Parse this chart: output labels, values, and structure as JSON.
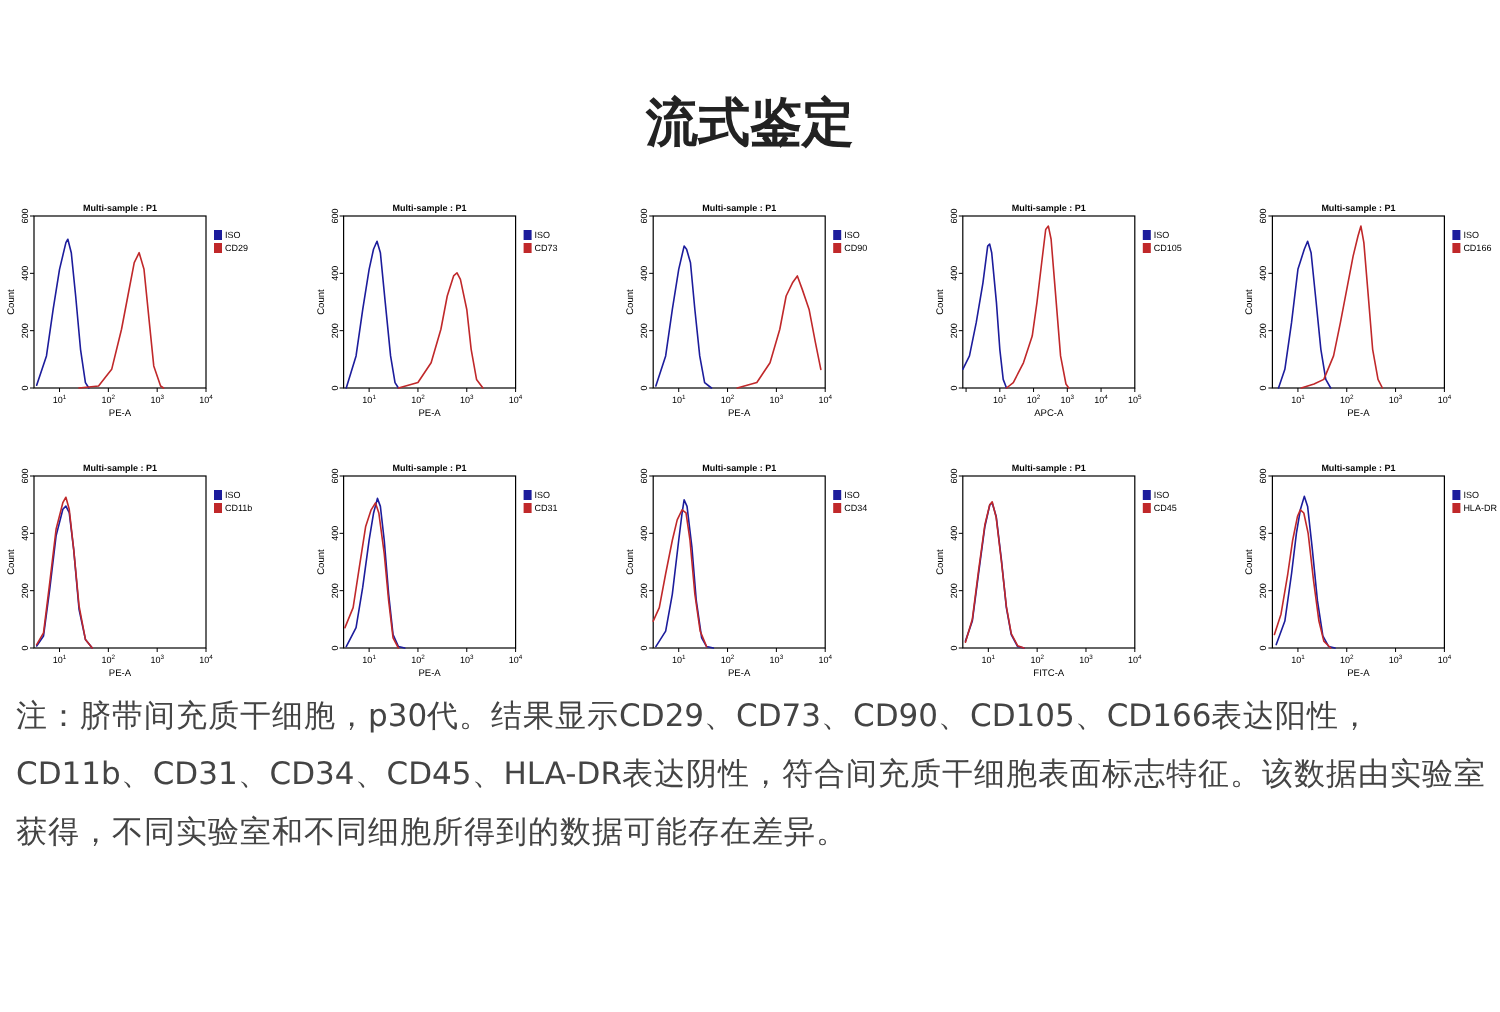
{
  "chart_data": [
    {
      "type": "other",
      "title": "流式鉴定"
    },
    {
      "type": "line",
      "title": "Multi-sample : P1",
      "xlabel": "PE-A",
      "ylabel": "Count",
      "log": "x",
      "xlim": [
        3,
        10000
      ],
      "ylim": [
        0,
        600
      ],
      "xticks": [
        {
          "value": 10,
          "label": "10$^{1}$"
        },
        {
          "value": 100,
          "label": "10$^{2}$"
        },
        {
          "value": 1000,
          "label": "10$^{3}$"
        },
        {
          "value": 10000,
          "label": "10$^{4}$"
        }
      ],
      "yticks": [
        0,
        200,
        400,
        600
      ],
      "legend": "top right",
      "series": [
        {
          "name": "ISO",
          "color": "#1c1c9c",
          "x": [
            3.4,
            5.4,
            7.4,
            10,
            13.5,
            14.8,
            17.4,
            21.4,
            26.9,
            33.9,
            39.8
          ],
          "values": [
            10,
            112,
            274,
            414,
            507,
            519,
            472,
            321,
            135,
            19,
            0
          ]
        },
        {
          "name": "CD29",
          "color": "#c0282a",
          "x": [
            25,
            63,
            117,
            186,
            251,
            339,
            427,
            537,
            692,
            851,
            1175,
            1350
          ],
          "values": [
            0,
            7,
            65,
            205,
            321,
            437,
            472,
            414,
            228,
            77,
            7,
            0
          ]
        }
      ]
    },
    {
      "type": "line",
      "title": "Multi-sample : P1",
      "xlabel": "PE-A",
      "ylabel": "Count",
      "log": "x",
      "xlim": [
        3,
        10000
      ],
      "ylim": [
        0,
        600
      ],
      "xticks": [
        {
          "value": 10,
          "label": "10$^{1}$"
        },
        {
          "value": 100,
          "label": "10$^{2}$"
        },
        {
          "value": 1000,
          "label": "10$^{3}$"
        },
        {
          "value": 10000,
          "label": "10$^{4}$"
        }
      ],
      "yticks": [
        0,
        200,
        400,
        600
      ],
      "legend": "top right",
      "series": [
        {
          "name": "ISO",
          "color": "#1c1c9c",
          "x": [
            3.4,
            5.4,
            7.4,
            10,
            12.3,
            14.5,
            17,
            21.4,
            27.5,
            33.9,
            39.8
          ],
          "values": [
            0,
            112,
            274,
            414,
            484,
            512,
            472,
            298,
            112,
            19,
            0
          ]
        },
        {
          "name": "CD73",
          "color": "#c0282a",
          "x": [
            40,
            100,
            186,
            295,
            398,
            537,
            631,
            741,
            1000,
            1230,
            1585,
            2140
          ],
          "values": [
            0,
            19,
            88,
            205,
            321,
            391,
            402,
            379,
            274,
            135,
            30,
            0
          ]
        }
      ]
    },
    {
      "type": "line",
      "title": "Multi-sample : P1",
      "xlabel": "PE-A",
      "ylabel": "Count",
      "log": "x",
      "xlim": [
        3,
        10000
      ],
      "ylim": [
        0,
        600
      ],
      "xticks": [
        {
          "value": 10,
          "label": "10$^{1}$"
        },
        {
          "value": 100,
          "label": "10$^{2}$"
        },
        {
          "value": 1000,
          "label": "10$^{3}$"
        },
        {
          "value": 10000,
          "label": "10$^{4}$"
        }
      ],
      "yticks": [
        0,
        200,
        400,
        600
      ],
      "legend": "top right",
      "series": [
        {
          "name": "ISO",
          "color": "#1c1c9c",
          "x": [
            3.4,
            5.4,
            7.4,
            10,
            12.9,
            14.5,
            17.4,
            21.4,
            26.9,
            33.9,
            46.8
          ],
          "values": [
            7,
            112,
            274,
            414,
            495,
            484,
            437,
            274,
            112,
            19,
            0
          ]
        },
        {
          "name": "CD90",
          "color": "#c0282a",
          "x": [
            158,
            398,
            741,
            1175,
            1585,
            2140,
            2690,
            3390,
            4680,
            6310,
            8130
          ],
          "values": [
            0,
            19,
            88,
            205,
            321,
            367,
            391,
            344,
            274,
            158,
            65
          ]
        }
      ]
    },
    {
      "type": "line",
      "title": "Multi-sample : P1",
      "xlabel": "APC-A",
      "ylabel": "Count",
      "log": "x",
      "xlim": [
        0.8,
        100000
      ],
      "ylim": [
        0,
        600
      ],
      "xticks": [
        {
          "value": 1,
          "label": null
        },
        {
          "value": 10,
          "label": "10$^{1}$"
        },
        {
          "value": 100,
          "label": "10$^{2}$"
        },
        {
          "value": 1000,
          "label": "10$^{3}$"
        },
        {
          "value": 10000,
          "label": "10$^{4}$"
        },
        {
          "value": 100000,
          "label": "10$^{5}$"
        }
      ],
      "yticks": [
        0,
        200,
        400,
        600
      ],
      "legend": "top right",
      "series": [
        {
          "name": "ISO",
          "color": "#1c1c9c",
          "x": [
            0.8,
            1.26,
            2.0,
            3.16,
            4.37,
            5.01,
            5.75,
            7.94,
            10,
            12.6,
            15.8
          ],
          "values": [
            65,
            112,
            228,
            367,
            495,
            502,
            472,
            298,
            135,
            30,
            0
          ]
        },
        {
          "name": "CD105",
          "color": "#c0282a",
          "x": [
            15.8,
            25.1,
            50.1,
            91.2,
            126,
            174,
            229,
            275,
            331,
            437,
            631,
            912,
            1100
          ],
          "values": [
            0,
            19,
            88,
            181,
            298,
            437,
            553,
            565,
            519,
            344,
            112,
            14,
            0
          ]
        }
      ]
    },
    {
      "type": "line",
      "title": "Multi-sample : P1",
      "xlabel": "PE-A",
      "ylabel": "Count",
      "log": "x",
      "xlim": [
        3,
        10000
      ],
      "ylim": [
        0,
        600
      ],
      "xticks": [
        {
          "value": 10,
          "label": "10$^{1}$"
        },
        {
          "value": 100,
          "label": "10$^{2}$"
        },
        {
          "value": 1000,
          "label": "10$^{3}$"
        },
        {
          "value": 10000,
          "label": "10$^{4}$"
        }
      ],
      "yticks": [
        0,
        200,
        400,
        600
      ],
      "legend": "top right",
      "series": [
        {
          "name": "ISO",
          "color": "#1c1c9c",
          "x": [
            4,
            5.4,
            7.4,
            10,
            13.5,
            15.8,
            18.6,
            22.9,
            29.5,
            37.2,
            46.8
          ],
          "values": [
            0,
            65,
            228,
            414,
            484,
            512,
            472,
            321,
            135,
            30,
            0
          ]
        },
        {
          "name": "CD166",
          "color": "#c0282a",
          "x": [
            11.7,
            21.4,
            33.9,
            53.7,
            74.1,
            100,
            135,
            170,
            195,
            224,
            269,
            339,
            437,
            537
          ],
          "values": [
            0,
            14,
            30,
            112,
            228,
            344,
            460,
            530,
            565,
            507,
            344,
            135,
            30,
            0
          ]
        }
      ]
    },
    {
      "type": "line",
      "title": "Multi-sample : P1",
      "xlabel": "PE-A",
      "ylabel": "Count",
      "log": "x",
      "xlim": [
        3,
        10000
      ],
      "ylim": [
        0,
        600
      ],
      "xticks": [
        {
          "value": 10,
          "label": "10$^{1}$"
        },
        {
          "value": 100,
          "label": "10$^{2}$"
        },
        {
          "value": 1000,
          "label": "10$^{3}$"
        },
        {
          "value": 10000,
          "label": "10$^{4}$"
        }
      ],
      "yticks": [
        0,
        200,
        400,
        600
      ],
      "legend": "top right",
      "series": [
        {
          "name": "ISO",
          "color": "#1c1c9c",
          "x": [
            3.4,
            4.7,
            6.3,
            8.5,
            11.7,
            13.5,
            15.8,
            19.5,
            25.1,
            33.9,
            46.8
          ],
          "values": [
            7,
            42,
            205,
            391,
            484,
            495,
            472,
            344,
            135,
            30,
            0
          ]
        },
        {
          "name": "CD11b",
          "color": "#c0282a",
          "x": [
            3.4,
            4.7,
            6.3,
            8.5,
            11.7,
            13.5,
            15.8,
            19.5,
            25.1,
            33.9,
            46.8
          ],
          "values": [
            12,
            53,
            228,
            414,
            507,
            526,
            484,
            344,
            147,
            30,
            0
          ]
        }
      ]
    },
    {
      "type": "line",
      "title": "Multi-sample : P1",
      "xlabel": "PE-A",
      "ylabel": "Count",
      "log": "x",
      "xlim": [
        3,
        10000
      ],
      "ylim": [
        0,
        600
      ],
      "xticks": [
        {
          "value": 10,
          "label": "10$^{1}$"
        },
        {
          "value": 100,
          "label": "10$^{2}$"
        },
        {
          "value": 1000,
          "label": "10$^{3}$"
        },
        {
          "value": 10000,
          "label": "10$^{4}$"
        }
      ],
      "yticks": [
        0,
        200,
        400,
        600
      ],
      "legend": "top right",
      "series": [
        {
          "name": "ISO",
          "color": "#1c1c9c",
          "x": [
            3.4,
            5.4,
            7.4,
            10,
            12.3,
            14.8,
            17,
            20.4,
            25.1,
            30.9,
            39.8,
            53.7
          ],
          "values": [
            5,
            71,
            212,
            376,
            470,
            522,
            494,
            376,
            188,
            47,
            5,
            0
          ]
        },
        {
          "name": "CD31",
          "color": "#c0282a",
          "x": [
            3.2,
            4.7,
            6.3,
            8.5,
            11,
            13.5,
            15.8,
            20.4,
            25.1,
            30.9,
            39.8
          ],
          "values": [
            71,
            141,
            282,
            424,
            482,
            506,
            471,
            329,
            165,
            35,
            0
          ]
        }
      ]
    },
    {
      "type": "line",
      "title": "Multi-sample : P1",
      "xlabel": "PE-A",
      "ylabel": "Count",
      "log": "x",
      "xlim": [
        3,
        10000
      ],
      "ylim": [
        0,
        600
      ],
      "xticks": [
        {
          "value": 10,
          "label": "10$^{1}$"
        },
        {
          "value": 100,
          "label": "10$^{2}$"
        },
        {
          "value": 1000,
          "label": "10$^{3}$"
        },
        {
          "value": 10000,
          "label": "10$^{4}$"
        }
      ],
      "yticks": [
        0,
        200,
        400,
        600
      ],
      "legend": "top right",
      "series": [
        {
          "name": "ISO",
          "color": "#1c1c9c",
          "x": [
            3.4,
            5.4,
            7.4,
            10,
            11.7,
            12.9,
            14.8,
            18.6,
            22.9,
            29.5,
            37.2,
            51.3
          ],
          "values": [
            5,
            59,
            188,
            376,
            470,
            517,
            494,
            353,
            165,
            35,
            5,
            0
          ]
        },
        {
          "name": "CD34",
          "color": "#c0282a",
          "x": [
            3,
            4,
            5.4,
            7.4,
            9.3,
            11.7,
            14.1,
            17,
            21.4,
            27.5,
            37.2
          ],
          "values": [
            94,
            141,
            259,
            376,
            447,
            482,
            471,
            376,
            188,
            59,
            5
          ]
        }
      ]
    },
    {
      "type": "line",
      "title": "Multi-sample : P1",
      "xlabel": "FITC-A",
      "ylabel": "Count",
      "log": "x",
      "xlim": [
        3,
        10000
      ],
      "ylim": [
        0,
        600
      ],
      "xticks": [
        {
          "value": 10,
          "label": "10$^{1}$"
        },
        {
          "value": 100,
          "label": "10$^{2}$"
        },
        {
          "value": 1000,
          "label": "10$^{3}$"
        },
        {
          "value": 10000,
          "label": "10$^{4}$"
        }
      ],
      "yticks": [
        0,
        200,
        400,
        600
      ],
      "legend": "top right",
      "series": [
        {
          "name": "ISO",
          "color": "#1c1c9c",
          "x": [
            3.4,
            4.7,
            6.3,
            8.5,
            10.7,
            12,
            14.5,
            18.6,
            23.4,
            29.5,
            39.8,
            53.7
          ],
          "values": [
            24,
            94,
            259,
            424,
            499,
            506,
            459,
            306,
            141,
            47,
            5,
            0
          ]
        },
        {
          "name": "CD45",
          "color": "#c0282a",
          "x": [
            3.4,
            4.7,
            6.3,
            8.5,
            10.7,
            12,
            14.5,
            18.6,
            23.4,
            29.5,
            39.8,
            53.7
          ],
          "values": [
            20,
            100,
            270,
            430,
            500,
            510,
            455,
            300,
            145,
            50,
            8,
            0
          ]
        }
      ]
    },
    {
      "type": "line",
      "title": "Multi-sample : P1",
      "xlabel": "PE-A",
      "ylabel": "Count",
      "log": "x",
      "xlim": [
        3,
        10000
      ],
      "ylim": [
        0,
        600
      ],
      "xticks": [
        {
          "value": 10,
          "label": "10$^{1}$"
        },
        {
          "value": 100,
          "label": "10$^{2}$"
        },
        {
          "value": 1000,
          "label": "10$^{3}$"
        },
        {
          "value": 10000,
          "label": "10$^{4}$"
        }
      ],
      "yticks": [
        0,
        200,
        400,
        600
      ],
      "legend": "top right",
      "series": [
        {
          "name": "ISO",
          "color": "#1c1c9c",
          "x": [
            3.6,
            5.4,
            7.4,
            9.3,
            11.2,
            13.5,
            15.8,
            19.5,
            25.1,
            32.4,
            42.7,
            57.5
          ],
          "values": [
            12,
            94,
            259,
            400,
            482,
            529,
            494,
            353,
            165,
            42,
            5,
            0
          ]
        },
        {
          "name": "HLA-DR",
          "color": "#c0282a",
          "x": [
            3.3,
            4.5,
            6.2,
            7.8,
            9.8,
            11.2,
            13.2,
            16.2,
            20.9,
            26.9,
            33.9,
            46.8
          ],
          "values": [
            47,
            118,
            259,
            376,
            459,
            482,
            471,
            400,
            235,
            94,
            24,
            0
          ]
        }
      ]
    },
    {
      "type": "other",
      "annotations": [
        "注：脐带间充质干细胞，p30代。结果显示CD29、CD73、CD90、CD105、CD166表达阳性，CD11b、CD31、CD34、CD45、HLA-DR表达阴性，符合间充质干细胞表面标志特征。该数据由实验室获得，不同实验室和不同细胞所得到的数据可能存在差异。"
      ]
    }
  ]
}
